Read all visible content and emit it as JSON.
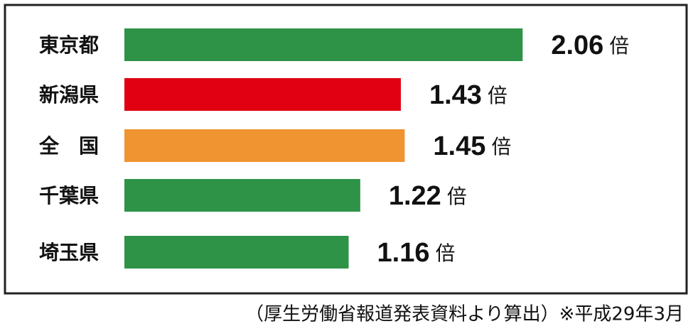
{
  "chart_data": {
    "type": "bar",
    "categories": [
      "東京都",
      "新潟県",
      "全　国",
      "千葉県",
      "埼玉県"
    ],
    "values": [
      2.06,
      1.43,
      1.45,
      1.22,
      1.16
    ],
    "colors": [
      "#2e9347",
      "#e00012",
      "#ef9430",
      "#2e9347",
      "#2e9347"
    ],
    "unit": "倍",
    "note": "（厚生労働省報道発表資料より算出）※平成29年3月"
  }
}
